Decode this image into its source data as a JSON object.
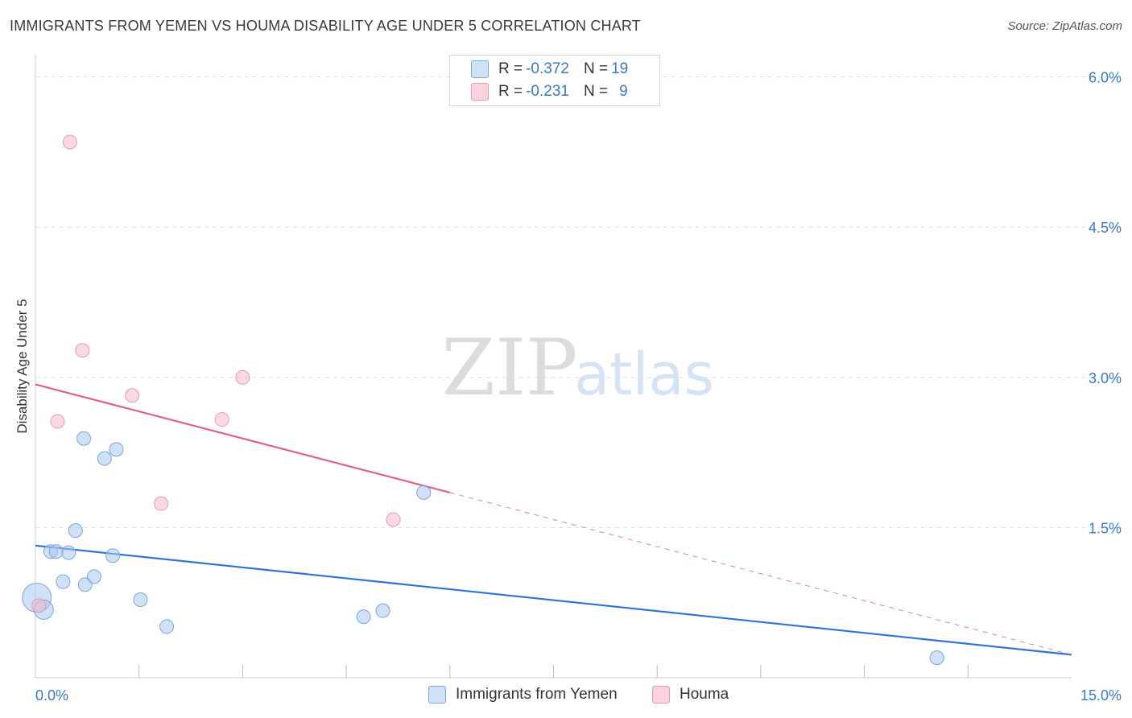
{
  "title": "IMMIGRANTS FROM YEMEN VS HOUMA DISABILITY AGE UNDER 5 CORRELATION CHART",
  "source": "Source: ZipAtlas.com",
  "watermark": {
    "zip": "ZIP",
    "atlas": "atlas"
  },
  "legend": {
    "rows": [
      {
        "r_label": "R = ",
        "r_value": "-0.372",
        "n_label": "N = ",
        "n_value": "19",
        "color": "#a9c8f0"
      },
      {
        "r_label": "R = ",
        "r_value": "-0.231",
        "n_label": "N = ",
        "n_value": "9",
        "color": "#f7b9cb"
      }
    ]
  },
  "bottom_legend": [
    {
      "label": "Immigrants from Yemen",
      "color": "#a9c8f0"
    },
    {
      "label": "Houma",
      "color": "#f7b9cb"
    }
  ],
  "chart_data": {
    "type": "scatter",
    "title": "IMMIGRANTS FROM YEMEN VS HOUMA DISABILITY AGE UNDER 5 CORRELATION CHART",
    "xlabel": "",
    "ylabel": "Disability Age Under 5",
    "xlim": [
      0,
      15
    ],
    "ylim": [
      0,
      6.15
    ],
    "x_tick_labels": [
      {
        "value": 0,
        "label": "0.0%"
      },
      {
        "value": 15,
        "label": "15.0%"
      }
    ],
    "y_ticks": [
      {
        "value": 1.5,
        "label": "1.5%"
      },
      {
        "value": 3.0,
        "label": "3.0%"
      },
      {
        "value": 4.5,
        "label": "4.5%"
      },
      {
        "value": 6.0,
        "label": "6.0%"
      }
    ],
    "x_minor_ticks": [
      1.5,
      3.0,
      4.5,
      6.0,
      7.5,
      9.0,
      10.5,
      12.0,
      13.5
    ],
    "series": [
      {
        "name": "Immigrants from Yemen",
        "color": "#a9c8f0",
        "stroke": "#7aa6dc",
        "line_color": "#2f72d6",
        "points": [
          {
            "x": 0.02,
            "y": 0.8,
            "size": 3
          },
          {
            "x": 0.12,
            "y": 0.68,
            "size": 2
          },
          {
            "x": 0.22,
            "y": 1.26,
            "size": 1
          },
          {
            "x": 0.3,
            "y": 1.26,
            "size": 1
          },
          {
            "x": 0.4,
            "y": 0.96,
            "size": 1
          },
          {
            "x": 0.48,
            "y": 1.25,
            "size": 1
          },
          {
            "x": 0.58,
            "y": 1.47,
            "size": 1
          },
          {
            "x": 0.7,
            "y": 2.39,
            "size": 1
          },
          {
            "x": 0.72,
            "y": 0.93,
            "size": 1
          },
          {
            "x": 0.85,
            "y": 1.01,
            "size": 1
          },
          {
            "x": 1.0,
            "y": 2.19,
            "size": 1
          },
          {
            "x": 1.12,
            "y": 1.22,
            "size": 1
          },
          {
            "x": 1.17,
            "y": 2.28,
            "size": 1
          },
          {
            "x": 1.52,
            "y": 0.78,
            "size": 1
          },
          {
            "x": 1.9,
            "y": 0.51,
            "size": 1
          },
          {
            "x": 4.75,
            "y": 0.61,
            "size": 1
          },
          {
            "x": 5.03,
            "y": 0.67,
            "size": 1
          },
          {
            "x": 5.62,
            "y": 1.85,
            "size": 1
          },
          {
            "x": 13.05,
            "y": 0.2,
            "size": 1
          }
        ],
        "trend": {
          "x0": 0,
          "y0": 1.32,
          "x1": 15,
          "y1": 0.23,
          "dashed_from": null
        }
      },
      {
        "name": "Houma",
        "color": "#f7b9cb",
        "stroke": "#e89ab0",
        "line_color": "#e0608a",
        "points": [
          {
            "x": 0.05,
            "y": 0.72,
            "size": 1
          },
          {
            "x": 0.32,
            "y": 2.56,
            "size": 1
          },
          {
            "x": 0.5,
            "y": 5.35,
            "size": 1
          },
          {
            "x": 0.68,
            "y": 3.27,
            "size": 1
          },
          {
            "x": 1.4,
            "y": 2.82,
            "size": 1
          },
          {
            "x": 1.82,
            "y": 1.74,
            "size": 1
          },
          {
            "x": 2.7,
            "y": 2.58,
            "size": 1
          },
          {
            "x": 3.0,
            "y": 3.0,
            "size": 1
          },
          {
            "x": 5.18,
            "y": 1.58,
            "size": 1
          }
        ],
        "trend": {
          "x0": 0,
          "y0": 2.93,
          "x1": 15,
          "y1": 0.23,
          "dashed_from": 6.0
        }
      }
    ]
  }
}
